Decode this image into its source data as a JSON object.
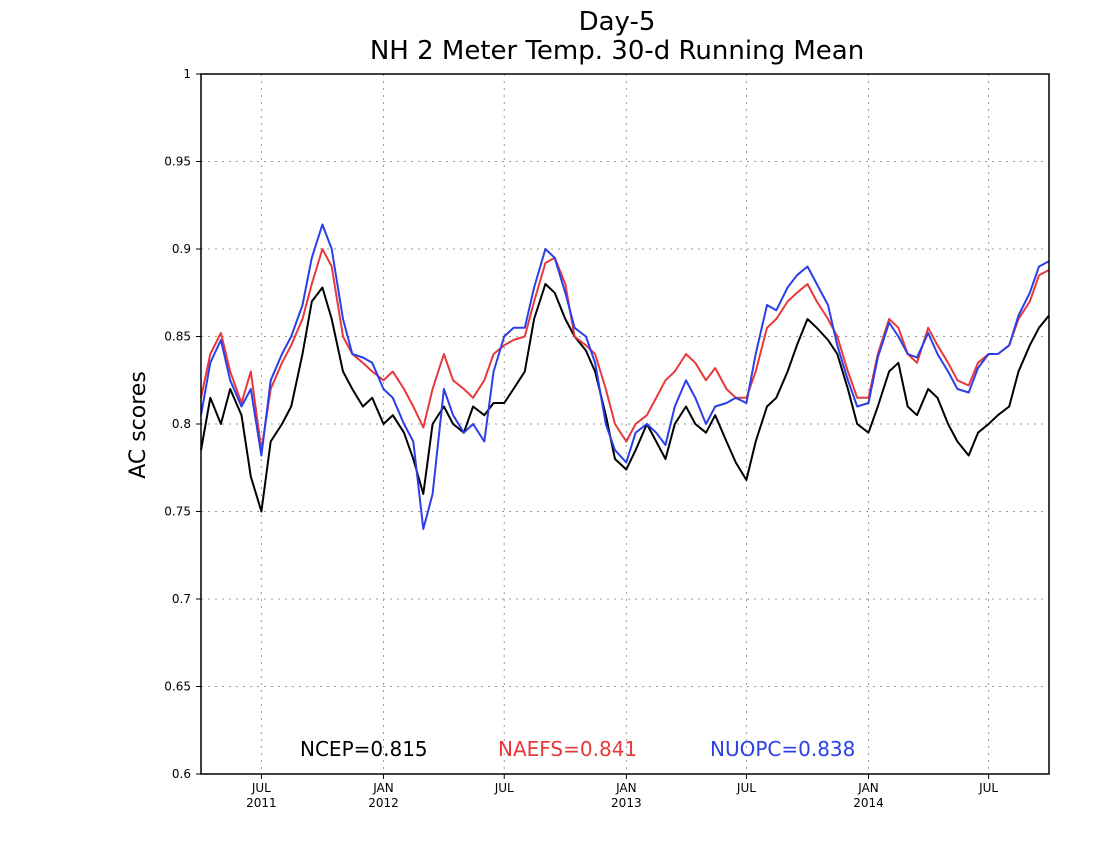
{
  "chart_data": {
    "type": "line",
    "title": "Day-5",
    "subtitle": "NH 2 Meter Temp. 30-d Running Mean",
    "ylabel": "AC scores",
    "xlabel": "",
    "ylim": [
      0.6,
      1.0
    ],
    "xlim": [
      "2011-04-01",
      "2014-09-30"
    ],
    "y_ticks": [
      0.6,
      0.65,
      0.7,
      0.75,
      0.8,
      0.85,
      0.9,
      0.95,
      1
    ],
    "y_tick_labels": [
      "0.6",
      "0.65",
      "0.7",
      "0.75",
      "0.8",
      "0.85",
      "0.9",
      "0.95",
      "1"
    ],
    "x_ticks": [
      {
        "date": "2011-07-01",
        "label": "JUL",
        "year": "2011"
      },
      {
        "date": "2012-01-01",
        "label": "JAN",
        "year": "2012"
      },
      {
        "date": "2012-07-01",
        "label": "JUL",
        "year": ""
      },
      {
        "date": "2013-01-01",
        "label": "JAN",
        "year": "2013"
      },
      {
        "date": "2013-07-01",
        "label": "JUL",
        "year": ""
      },
      {
        "date": "2014-01-01",
        "label": "JAN",
        "year": "2014"
      },
      {
        "date": "2014-07-01",
        "label": "JUL",
        "year": ""
      }
    ],
    "grid": true,
    "legend_position": "bottom",
    "colors": {
      "NCEP": "#000000",
      "NAEFS": "#e8383c",
      "NUOPC": "#2a3fe8"
    },
    "x": [
      "2011-04-01",
      "2011-04-15",
      "2011-05-01",
      "2011-05-15",
      "2011-06-01",
      "2011-06-15",
      "2011-07-01",
      "2011-07-15",
      "2011-08-01",
      "2011-08-15",
      "2011-09-01",
      "2011-09-15",
      "2011-10-01",
      "2011-10-15",
      "2011-11-01",
      "2011-11-15",
      "2011-12-01",
      "2011-12-15",
      "2012-01-01",
      "2012-01-15",
      "2012-02-01",
      "2012-02-15",
      "2012-03-01",
      "2012-03-15",
      "2012-04-01",
      "2012-04-15",
      "2012-05-01",
      "2012-05-15",
      "2012-06-01",
      "2012-06-15",
      "2012-07-01",
      "2012-07-15",
      "2012-08-01",
      "2012-08-15",
      "2012-09-01",
      "2012-09-15",
      "2012-10-01",
      "2012-10-15",
      "2012-11-01",
      "2012-11-15",
      "2012-12-01",
      "2012-12-15",
      "2013-01-01",
      "2013-01-15",
      "2013-02-01",
      "2013-02-15",
      "2013-03-01",
      "2013-03-15",
      "2013-04-01",
      "2013-04-15",
      "2013-05-01",
      "2013-05-15",
      "2013-06-01",
      "2013-06-15",
      "2013-07-01",
      "2013-07-15",
      "2013-08-01",
      "2013-08-15",
      "2013-09-01",
      "2013-09-15",
      "2013-10-01",
      "2013-10-15",
      "2013-11-01",
      "2013-11-15",
      "2013-12-01",
      "2013-12-15",
      "2014-01-01",
      "2014-01-15",
      "2014-02-01",
      "2014-02-15",
      "2014-03-01",
      "2014-03-15",
      "2014-04-01",
      "2014-04-15",
      "2014-05-01",
      "2014-05-15",
      "2014-06-01",
      "2014-06-15",
      "2014-07-01",
      "2014-07-15",
      "2014-08-01",
      "2014-08-15",
      "2014-09-01",
      "2014-09-15",
      "2014-09-30"
    ],
    "series": [
      {
        "name": "NCEP",
        "legend": "NCEP=0.815",
        "color": "#000000",
        "values": [
          0.785,
          0.815,
          0.8,
          0.82,
          0.805,
          0.77,
          0.75,
          0.79,
          0.8,
          0.81,
          0.84,
          0.87,
          0.878,
          0.86,
          0.83,
          0.82,
          0.81,
          0.815,
          0.8,
          0.805,
          0.795,
          0.78,
          0.76,
          0.8,
          0.81,
          0.8,
          0.795,
          0.81,
          0.805,
          0.812,
          0.812,
          0.82,
          0.83,
          0.86,
          0.88,
          0.875,
          0.86,
          0.85,
          0.842,
          0.83,
          0.805,
          0.78,
          0.774,
          0.785,
          0.8,
          0.79,
          0.78,
          0.8,
          0.81,
          0.8,
          0.795,
          0.805,
          0.79,
          0.778,
          0.768,
          0.79,
          0.81,
          0.815,
          0.83,
          0.845,
          0.86,
          0.855,
          0.848,
          0.84,
          0.82,
          0.8,
          0.795,
          0.81,
          0.83,
          0.835,
          0.81,
          0.805,
          0.82,
          0.815,
          0.8,
          0.79,
          0.782,
          0.795,
          0.8,
          0.805,
          0.81,
          0.83,
          0.845,
          0.855,
          0.862
        ]
      },
      {
        "name": "NAEFS",
        "legend": "NAEFS=0.841",
        "color": "#e8383c",
        "values": [
          0.815,
          0.84,
          0.852,
          0.83,
          0.812,
          0.83,
          0.785,
          0.82,
          0.835,
          0.845,
          0.86,
          0.88,
          0.9,
          0.89,
          0.85,
          0.84,
          0.835,
          0.83,
          0.825,
          0.83,
          0.82,
          0.81,
          0.798,
          0.82,
          0.84,
          0.825,
          0.82,
          0.815,
          0.825,
          0.84,
          0.845,
          0.848,
          0.85,
          0.87,
          0.892,
          0.895,
          0.88,
          0.85,
          0.845,
          0.84,
          0.82,
          0.8,
          0.79,
          0.8,
          0.805,
          0.815,
          0.825,
          0.83,
          0.84,
          0.835,
          0.825,
          0.832,
          0.82,
          0.815,
          0.815,
          0.83,
          0.855,
          0.86,
          0.87,
          0.875,
          0.88,
          0.87,
          0.86,
          0.85,
          0.83,
          0.815,
          0.815,
          0.84,
          0.86,
          0.855,
          0.84,
          0.835,
          0.855,
          0.845,
          0.835,
          0.825,
          0.822,
          0.835,
          0.84,
          0.84,
          0.845,
          0.86,
          0.87,
          0.885,
          0.888
        ]
      },
      {
        "name": "NUOPC",
        "legend": "NUOPC=0.838",
        "color": "#2a3fe8",
        "values": [
          0.805,
          0.835,
          0.848,
          0.825,
          0.81,
          0.82,
          0.782,
          0.825,
          0.84,
          0.85,
          0.868,
          0.895,
          0.914,
          0.9,
          0.86,
          0.84,
          0.838,
          0.835,
          0.82,
          0.815,
          0.8,
          0.79,
          0.74,
          0.76,
          0.82,
          0.805,
          0.795,
          0.8,
          0.79,
          0.83,
          0.85,
          0.855,
          0.855,
          0.878,
          0.9,
          0.895,
          0.875,
          0.855,
          0.85,
          0.835,
          0.8,
          0.785,
          0.778,
          0.795,
          0.8,
          0.795,
          0.788,
          0.81,
          0.825,
          0.815,
          0.8,
          0.81,
          0.812,
          0.815,
          0.812,
          0.84,
          0.868,
          0.865,
          0.878,
          0.885,
          0.89,
          0.88,
          0.868,
          0.845,
          0.825,
          0.81,
          0.812,
          0.838,
          0.858,
          0.85,
          0.84,
          0.838,
          0.852,
          0.84,
          0.83,
          0.82,
          0.818,
          0.832,
          0.84,
          0.84,
          0.845,
          0.862,
          0.875,
          0.89,
          0.893
        ]
      }
    ]
  }
}
